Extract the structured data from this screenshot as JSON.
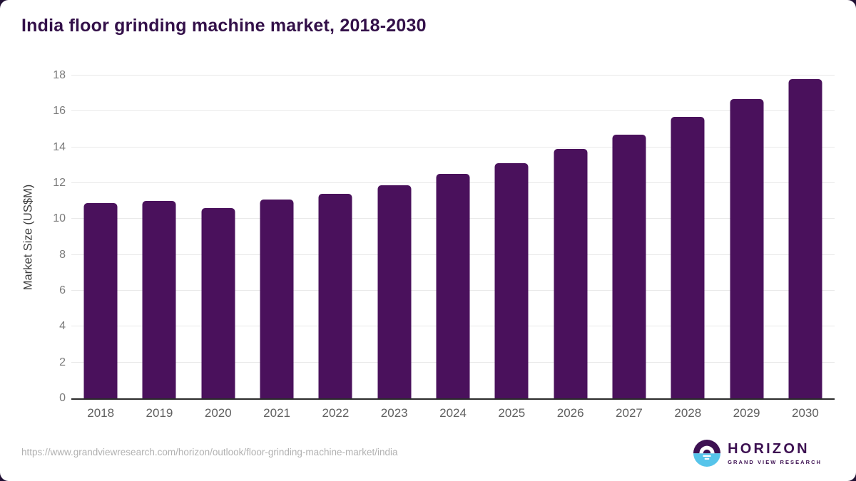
{
  "title": "India floor grinding machine market, 2018-2030",
  "chart_data": {
    "type": "bar",
    "categories": [
      "2018",
      "2019",
      "2020",
      "2021",
      "2022",
      "2023",
      "2024",
      "2025",
      "2026",
      "2027",
      "2028",
      "2029",
      "2030"
    ],
    "values": [
      10.9,
      11.0,
      10.6,
      11.1,
      11.4,
      11.9,
      12.5,
      13.1,
      13.9,
      14.7,
      15.7,
      16.7,
      17.8
    ],
    "title": "India floor grinding machine market, 2018-2030",
    "xlabel": "",
    "ylabel": "Market Size (US$M)",
    "ylim": [
      0,
      18
    ],
    "ytick_step": 2,
    "grid": true,
    "legend": "none",
    "bar_color": "#4A115C"
  },
  "footer": {
    "source_url": "https://www.grandviewresearch.com/horizon/outlook/floor-grinding-machine-market/india",
    "logo": {
      "name": "HORIZON",
      "subtitle": "GRAND VIEW RESEARCH",
      "icon": "horizon-sun-icon"
    }
  },
  "colors": {
    "title": "#331049",
    "bar": "#4A115C",
    "gridline": "#e9e9e9",
    "axis_line": "#2b2b2b",
    "tick_text": "#7b7b7b",
    "xtick_text": "#606060",
    "url_text": "#b1b1b1",
    "logo_purple": "#3D1152",
    "logo_blue": "#56C4EA",
    "background": "#ffffff"
  }
}
